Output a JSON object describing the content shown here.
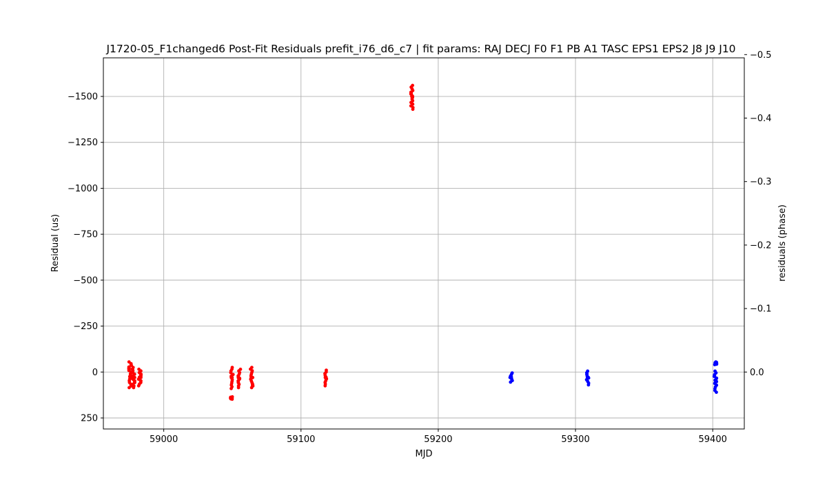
{
  "chart_data": {
    "type": "scatter",
    "title": "J1720-05_F1changed6 Post-Fit Residuals prefit_i76_d6_c7 | fit params: RAJ DECJ F0 F1 PB A1 TASC EPS1 EPS2 J8 J9 J10",
    "xlabel": "MJD",
    "ylabel": "Residual (us)",
    "y2label": "residuals (phase)",
    "xlim": [
      58956,
      59423
    ],
    "ylim": [
      310,
      -1710
    ],
    "y_inverted": true,
    "y2lim": [
      0.0897,
      -0.4949
    ],
    "grid": true,
    "x_ticks": [
      59000,
      59100,
      59200,
      59300,
      59400
    ],
    "x_tick_labels": [
      "59000",
      "59100",
      "59200",
      "59300",
      "59400"
    ],
    "y_ticks": [
      -1500,
      -1250,
      -1000,
      -750,
      -500,
      -250,
      0,
      250
    ],
    "y_tick_labels": [
      "−1500",
      "−1250",
      "−1000",
      "−750",
      "−500",
      "−250",
      "0",
      "250"
    ],
    "y2_ticks": [
      -0.5,
      -0.4,
      -0.3,
      -0.2,
      -0.1,
      0.0
    ],
    "y2_tick_labels": [
      "−0.5",
      "−0.4",
      "−0.3",
      "−0.2",
      "−0.1",
      "0.0"
    ],
    "colors": {
      "red_series": "#ff0000",
      "blue_series": "#0000ff",
      "grid": "#b0b0b0"
    },
    "series": [
      {
        "color": "#ff0000",
        "clusters": [
          {
            "x": 58975.5,
            "y_min": -55,
            "y_max": 85,
            "center": 25
          },
          {
            "x": 58978,
            "y_min": -25,
            "y_max": 85,
            "center": 30
          },
          {
            "x": 58982.5,
            "y_min": -15,
            "y_max": 75,
            "center": 30
          },
          {
            "x": 59049.5,
            "y_min": -25,
            "y_max": 90,
            "center": 30
          },
          {
            "x": 59049.5,
            "y_min": 135,
            "y_max": 148,
            "center": 142
          },
          {
            "x": 59055,
            "y_min": -15,
            "y_max": 85,
            "center": 35
          },
          {
            "x": 59064,
            "y_min": -25,
            "y_max": 85,
            "center": 30
          },
          {
            "x": 59118,
            "y_min": -10,
            "y_max": 75,
            "center": 30
          },
          {
            "x": 59181,
            "y_min": -1560,
            "y_max": -1430,
            "center": -1500
          }
        ]
      },
      {
        "color": "#0000ff",
        "clusters": [
          {
            "x": 59253,
            "y_min": 5,
            "y_max": 55,
            "center": 28
          },
          {
            "x": 59309,
            "y_min": -5,
            "y_max": 70,
            "center": 30
          },
          {
            "x": 59402,
            "y_min": -5,
            "y_max": 110,
            "center": 45
          },
          {
            "x": 59402,
            "y_min": -55,
            "y_max": -40,
            "center": -50
          }
        ]
      }
    ]
  }
}
